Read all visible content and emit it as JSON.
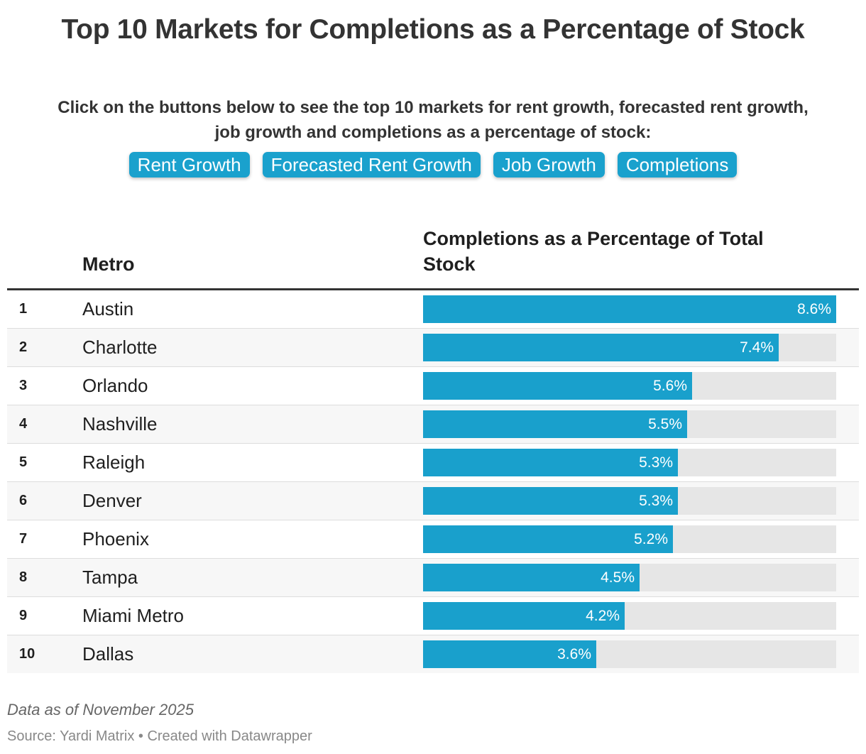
{
  "title": "Top 10 Markets for Completions as a Percentage of Stock",
  "instructions": {
    "line1": "Click on the buttons below to see the top 10 markets for rent growth, forecasted rent growth,",
    "line2": "job growth and completions as a percentage of stock:"
  },
  "buttons": [
    {
      "label": "Rent Growth"
    },
    {
      "label": "Forecasted Rent Growth"
    },
    {
      "label": "Job Growth"
    },
    {
      "label": "Completions"
    }
  ],
  "colors": {
    "accent": "#1aa1cd",
    "bar": "#19a0cc",
    "track": "#e6e6e6"
  },
  "chart_data": {
    "type": "bar",
    "orientation": "horizontal",
    "title": "Top 10 Markets for Completions as a Percentage of Stock",
    "columns": {
      "metro": "Metro",
      "value": "Completions as a Percentage of Total Stock"
    },
    "xlim": [
      0,
      8.6
    ],
    "unit": "%",
    "rows": [
      {
        "rank": "1",
        "metro": "Austin",
        "value": 8.6,
        "label": "8.6%"
      },
      {
        "rank": "2",
        "metro": "Charlotte",
        "value": 7.4,
        "label": "7.4%"
      },
      {
        "rank": "3",
        "metro": "Orlando",
        "value": 5.6,
        "label": "5.6%"
      },
      {
        "rank": "4",
        "metro": "Nashville",
        "value": 5.5,
        "label": "5.5%"
      },
      {
        "rank": "5",
        "metro": "Raleigh",
        "value": 5.3,
        "label": "5.3%"
      },
      {
        "rank": "6",
        "metro": "Denver",
        "value": 5.3,
        "label": "5.3%"
      },
      {
        "rank": "7",
        "metro": "Phoenix",
        "value": 5.2,
        "label": "5.2%"
      },
      {
        "rank": "8",
        "metro": "Tampa",
        "value": 4.5,
        "label": "4.5%"
      },
      {
        "rank": "9",
        "metro": "Miami Metro",
        "value": 4.2,
        "label": "4.2%"
      },
      {
        "rank": "10",
        "metro": "Dallas",
        "value": 3.6,
        "label": "3.6%"
      }
    ]
  },
  "footer": {
    "note": "Data as of November 2025",
    "source": "Source: Yardi Matrix • Created with Datawrapper"
  }
}
